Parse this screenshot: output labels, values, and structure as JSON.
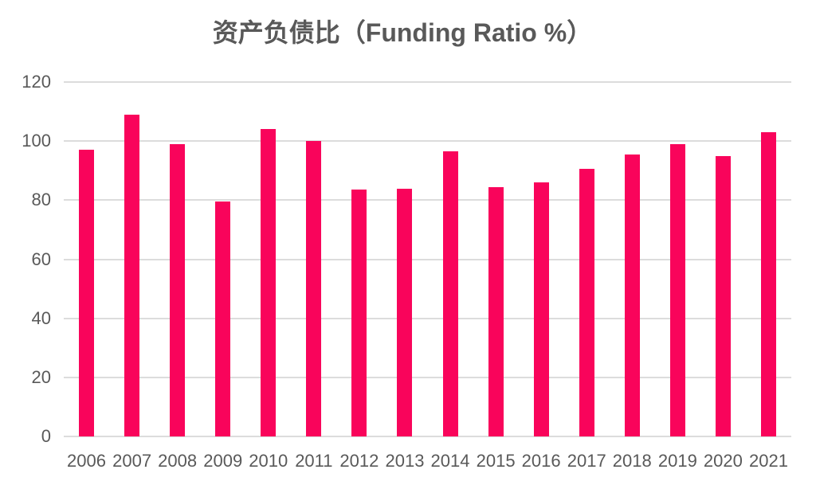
{
  "chart_data": {
    "type": "bar",
    "title": "资产负债比（Funding Ratio %）",
    "categories": [
      "2006",
      "2007",
      "2008",
      "2009",
      "2010",
      "2011",
      "2012",
      "2013",
      "2014",
      "2015",
      "2016",
      "2017",
      "2018",
      "2019",
      "2020",
      "2021"
    ],
    "values": [
      97,
      109,
      99,
      79.5,
      104,
      100,
      83.5,
      84,
      96.5,
      84.5,
      86,
      90.5,
      95.5,
      99,
      95,
      103
    ],
    "xlabel": "",
    "ylabel": "",
    "ylim": [
      0,
      120
    ],
    "yticks": [
      0,
      20,
      40,
      60,
      80,
      100,
      120
    ],
    "grid": true,
    "legend": "none",
    "colors": {
      "bar": "#f9045b",
      "gridline": "#dcdcdc",
      "axis_text": "#595959",
      "title_text": "#595959",
      "background": "#ffffff"
    }
  }
}
